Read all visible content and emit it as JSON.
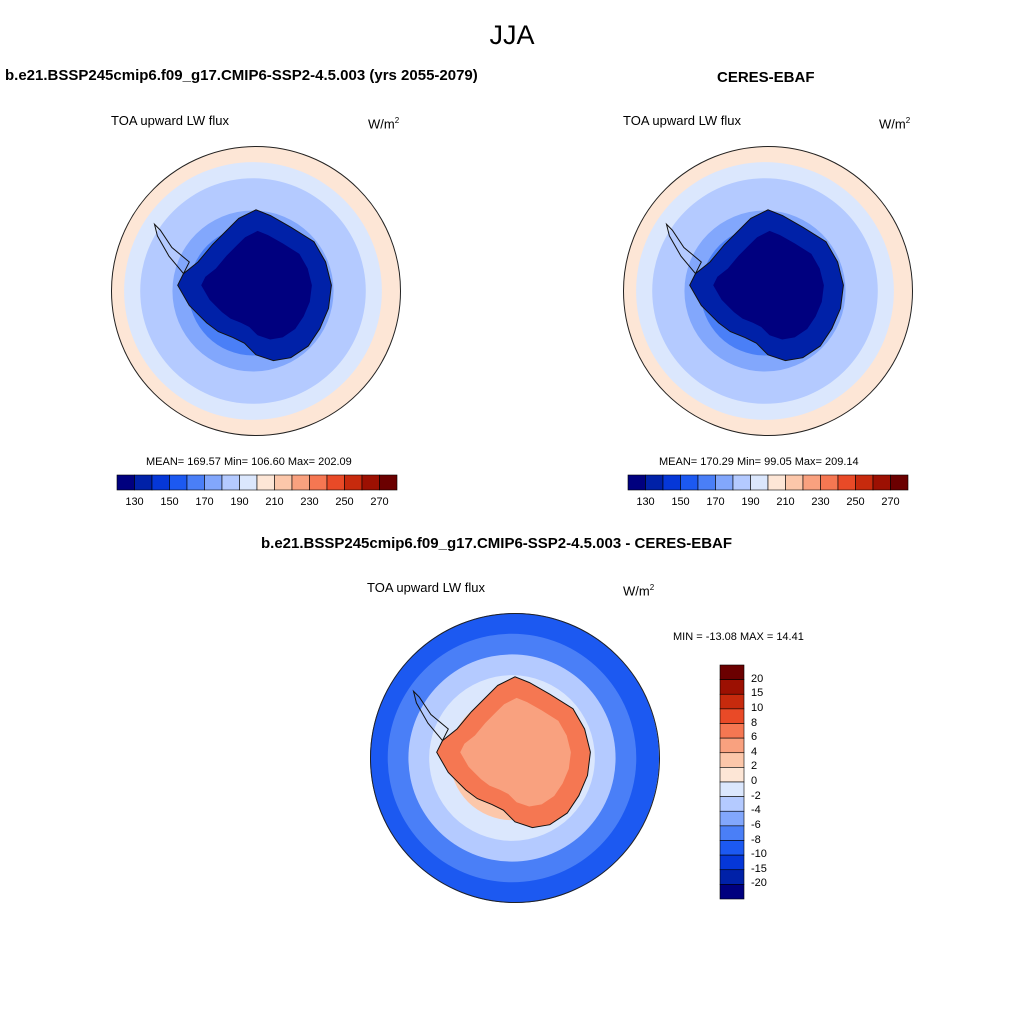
{
  "season": "JJA",
  "panels": [
    {
      "title": "b.e21.BSSP245cmip6.f09_g17.CMIP6-SSP2-4.5.003 (yrs 2055-2079)",
      "left_label": "TOA upward LW flux",
      "units_base": "W/m",
      "units_exp": "2",
      "stats": "MEAN= 169.57  Min= 106.60  Max= 202.09"
    },
    {
      "title": "CERES-EBAF",
      "left_label": "TOA upward LW flux",
      "units_base": "W/m",
      "units_exp": "2",
      "stats": "MEAN= 170.29  Min=  99.05  Max= 209.14"
    },
    {
      "title": "b.e21.BSSP245cmip6.f09_g17.CMIP6-SSP2-4.5.003 - CERES-EBAF",
      "left_label": "TOA upward LW flux",
      "units_base": "W/m",
      "units_exp": "2",
      "stats": "MIN = -13.08 MAX =  14.41"
    }
  ],
  "chart_data": [
    {
      "type": "heatmap",
      "projection": "south-polar-stereographic",
      "title": "b.e21.BSSP245cmip6.f09_g17.CMIP6-SSP2-4.5.003 (yrs 2055-2079)",
      "variable": "TOA upward LW flux",
      "units": "W/m2",
      "mean": 169.57,
      "min": 106.6,
      "max": 202.09,
      "colorbar": {
        "levels": [
          130,
          140,
          150,
          160,
          170,
          180,
          190,
          200,
          210,
          220,
          230,
          240,
          250,
          260,
          270
        ],
        "tick_labels": [
          "130",
          "150",
          "170",
          "190",
          "210",
          "230",
          "250",
          "270"
        ],
        "colors": [
          "#00007f",
          "#0021a8",
          "#0537d8",
          "#1c59f1",
          "#4a7ff7",
          "#82a7fc",
          "#b4caff",
          "#dbe7fd",
          "#fde6d6",
          "#fcc7aa",
          "#f9a17f",
          "#f57752",
          "#e94a27",
          "#c72a0d",
          "#9c1002",
          "#6b0000"
        ]
      },
      "rings": [
        200,
        193,
        186,
        180,
        174,
        168,
        160,
        150,
        140
      ],
      "continent": {
        "interior_mean": 115,
        "interior_edge": 135
      }
    },
    {
      "type": "heatmap",
      "projection": "south-polar-stereographic",
      "title": "CERES-EBAF",
      "variable": "TOA upward LW flux",
      "units": "W/m2",
      "mean": 170.29,
      "min": 99.05,
      "max": 209.14,
      "colorbar": {
        "levels": [
          130,
          140,
          150,
          160,
          170,
          180,
          190,
          200,
          210,
          220,
          230,
          240,
          250,
          260,
          270
        ],
        "tick_labels": [
          "130",
          "150",
          "170",
          "190",
          "210",
          "230",
          "250",
          "270"
        ],
        "colors": [
          "#00007f",
          "#0021a8",
          "#0537d8",
          "#1c59f1",
          "#4a7ff7",
          "#82a7fc",
          "#b4caff",
          "#dbe7fd",
          "#fde6d6",
          "#fcc7aa",
          "#f9a17f",
          "#f57752",
          "#e94a27",
          "#c72a0d",
          "#9c1002",
          "#6b0000"
        ]
      },
      "rings": [
        204,
        196,
        188,
        181,
        175,
        168,
        160,
        150,
        140
      ],
      "continent": {
        "interior_mean": 110,
        "interior_edge": 132
      }
    },
    {
      "type": "heatmap",
      "projection": "south-polar-stereographic",
      "title": "b.e21.BSSP245cmip6.f09_g17.CMIP6-SSP2-4.5.003 - CERES-EBAF",
      "variable": "TOA upward LW flux",
      "units": "W/m2",
      "min": -13.08,
      "max": 14.41,
      "colorbar": {
        "levels": [
          -20,
          -15,
          -10,
          -8,
          -6,
          -4,
          -2,
          0,
          2,
          4,
          6,
          8,
          10,
          15,
          20
        ],
        "tick_labels": [
          "20",
          "15",
          "10",
          "8",
          "6",
          "4",
          "2",
          "0",
          "-2",
          "-4",
          "-6",
          "-8",
          "-10",
          "-15",
          "-20"
        ],
        "colors": [
          "#00007f",
          "#0021a8",
          "#0537d8",
          "#1c59f1",
          "#4a7ff7",
          "#82a7fc",
          "#b4caff",
          "#dbe7fd",
          "#fde6d6",
          "#fcc7aa",
          "#f9a17f",
          "#f57752",
          "#e94a27",
          "#c72a0d",
          "#9c1002",
          "#6b0000"
        ]
      },
      "rings": [
        -9,
        -7,
        -3,
        -1,
        3,
        5,
        5
      ],
      "continent": {
        "interior_mean": 5,
        "interior_edge": 7
      }
    }
  ]
}
